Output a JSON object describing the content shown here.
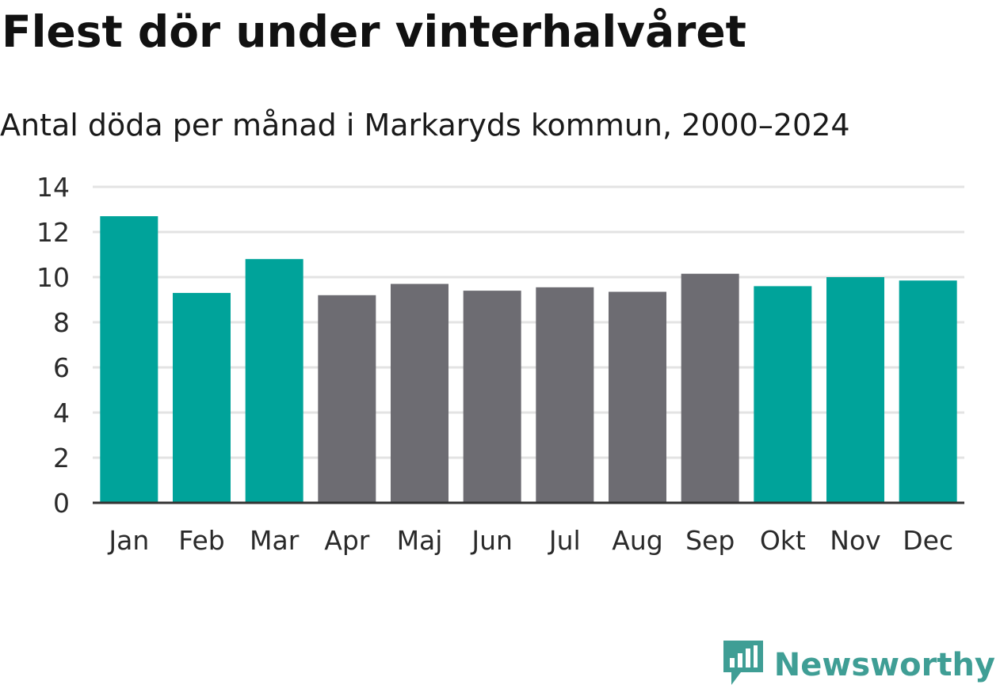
{
  "header": {
    "title": "Flest dör under vinterhalvåret",
    "subtitle": "Antal döda per månad i Markaryds kommun, 2000–2024"
  },
  "brand": {
    "name": "Newsworthy",
    "icon": "newsworthy-logo-icon",
    "color": "#3f9e95"
  },
  "colors": {
    "winter": "#00a39a",
    "summer": "#6d6c72",
    "grid": "#e3e3e3",
    "axis": "#333333"
  },
  "chart_data": {
    "type": "bar",
    "title": "Flest dör under vinterhalvåret",
    "subtitle": "Antal döda per månad i Markaryds kommun, 2000–2024",
    "xlabel": "",
    "ylabel": "",
    "ylim": [
      0,
      14
    ],
    "yticks": [
      0,
      2,
      4,
      6,
      8,
      10,
      12,
      14
    ],
    "grid": true,
    "categories": [
      "Jan",
      "Feb",
      "Mar",
      "Apr",
      "Maj",
      "Jun",
      "Jul",
      "Aug",
      "Sep",
      "Okt",
      "Nov",
      "Dec"
    ],
    "values": [
      12.7,
      9.3,
      10.8,
      9.2,
      9.7,
      9.4,
      9.55,
      9.35,
      10.15,
      9.6,
      10.0,
      9.85
    ],
    "groups": [
      "winter",
      "winter",
      "winter",
      "summer",
      "summer",
      "summer",
      "summer",
      "summer",
      "summer",
      "winter",
      "winter",
      "winter"
    ]
  }
}
